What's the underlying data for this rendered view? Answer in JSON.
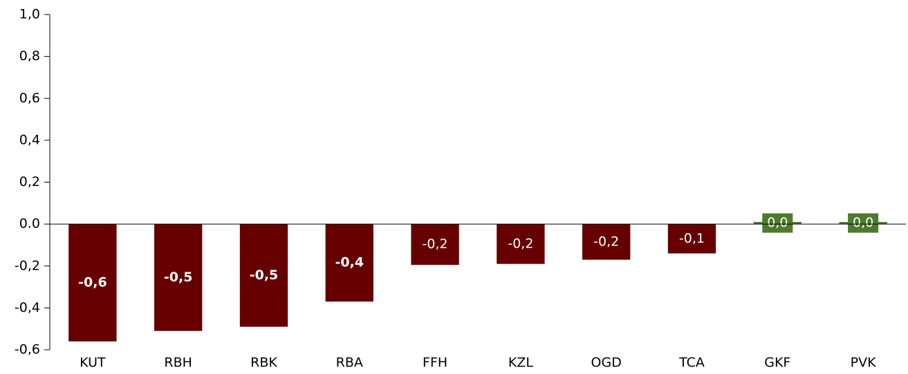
{
  "chart_data": {
    "type": "bar",
    "categories": [
      "KUT",
      "RBH",
      "RBK",
      "RBA",
      "FFH",
      "KZL",
      "OGD",
      "TCA",
      "GKF",
      "PVK"
    ],
    "values": [
      -0.56,
      -0.51,
      -0.49,
      -0.37,
      -0.195,
      -0.19,
      -0.17,
      -0.14,
      0.01,
      0.01
    ],
    "value_labels": [
      "-0,6",
      "-0,5",
      "-0,5",
      "-0,4",
      "-0,2",
      "-0,2",
      "-0,2",
      "-0,1",
      "0,0",
      "0,0"
    ],
    "colors": [
      "#660000",
      "#660000",
      "#660000",
      "#660000",
      "#660000",
      "#660000",
      "#660000",
      "#660000",
      "#4e7a2e",
      "#4e7a2e"
    ],
    "ylim": [
      -0.6,
      1.0
    ],
    "yticks": [
      {
        "value": -0.6,
        "label": "-0,6"
      },
      {
        "value": -0.4,
        "label": "-0,4"
      },
      {
        "value": -0.2,
        "label": "-0,2"
      },
      {
        "value": 0,
        "label": "0.0"
      },
      {
        "value": 0.2,
        "label": "0,2"
      },
      {
        "value": 0.4,
        "label": "0,4"
      },
      {
        "value": 0.6,
        "label": "0,6"
      },
      {
        "value": 0.8,
        "label": "0,8"
      },
      {
        "value": 1.0,
        "label": "1,0"
      }
    ],
    "grid": false
  }
}
